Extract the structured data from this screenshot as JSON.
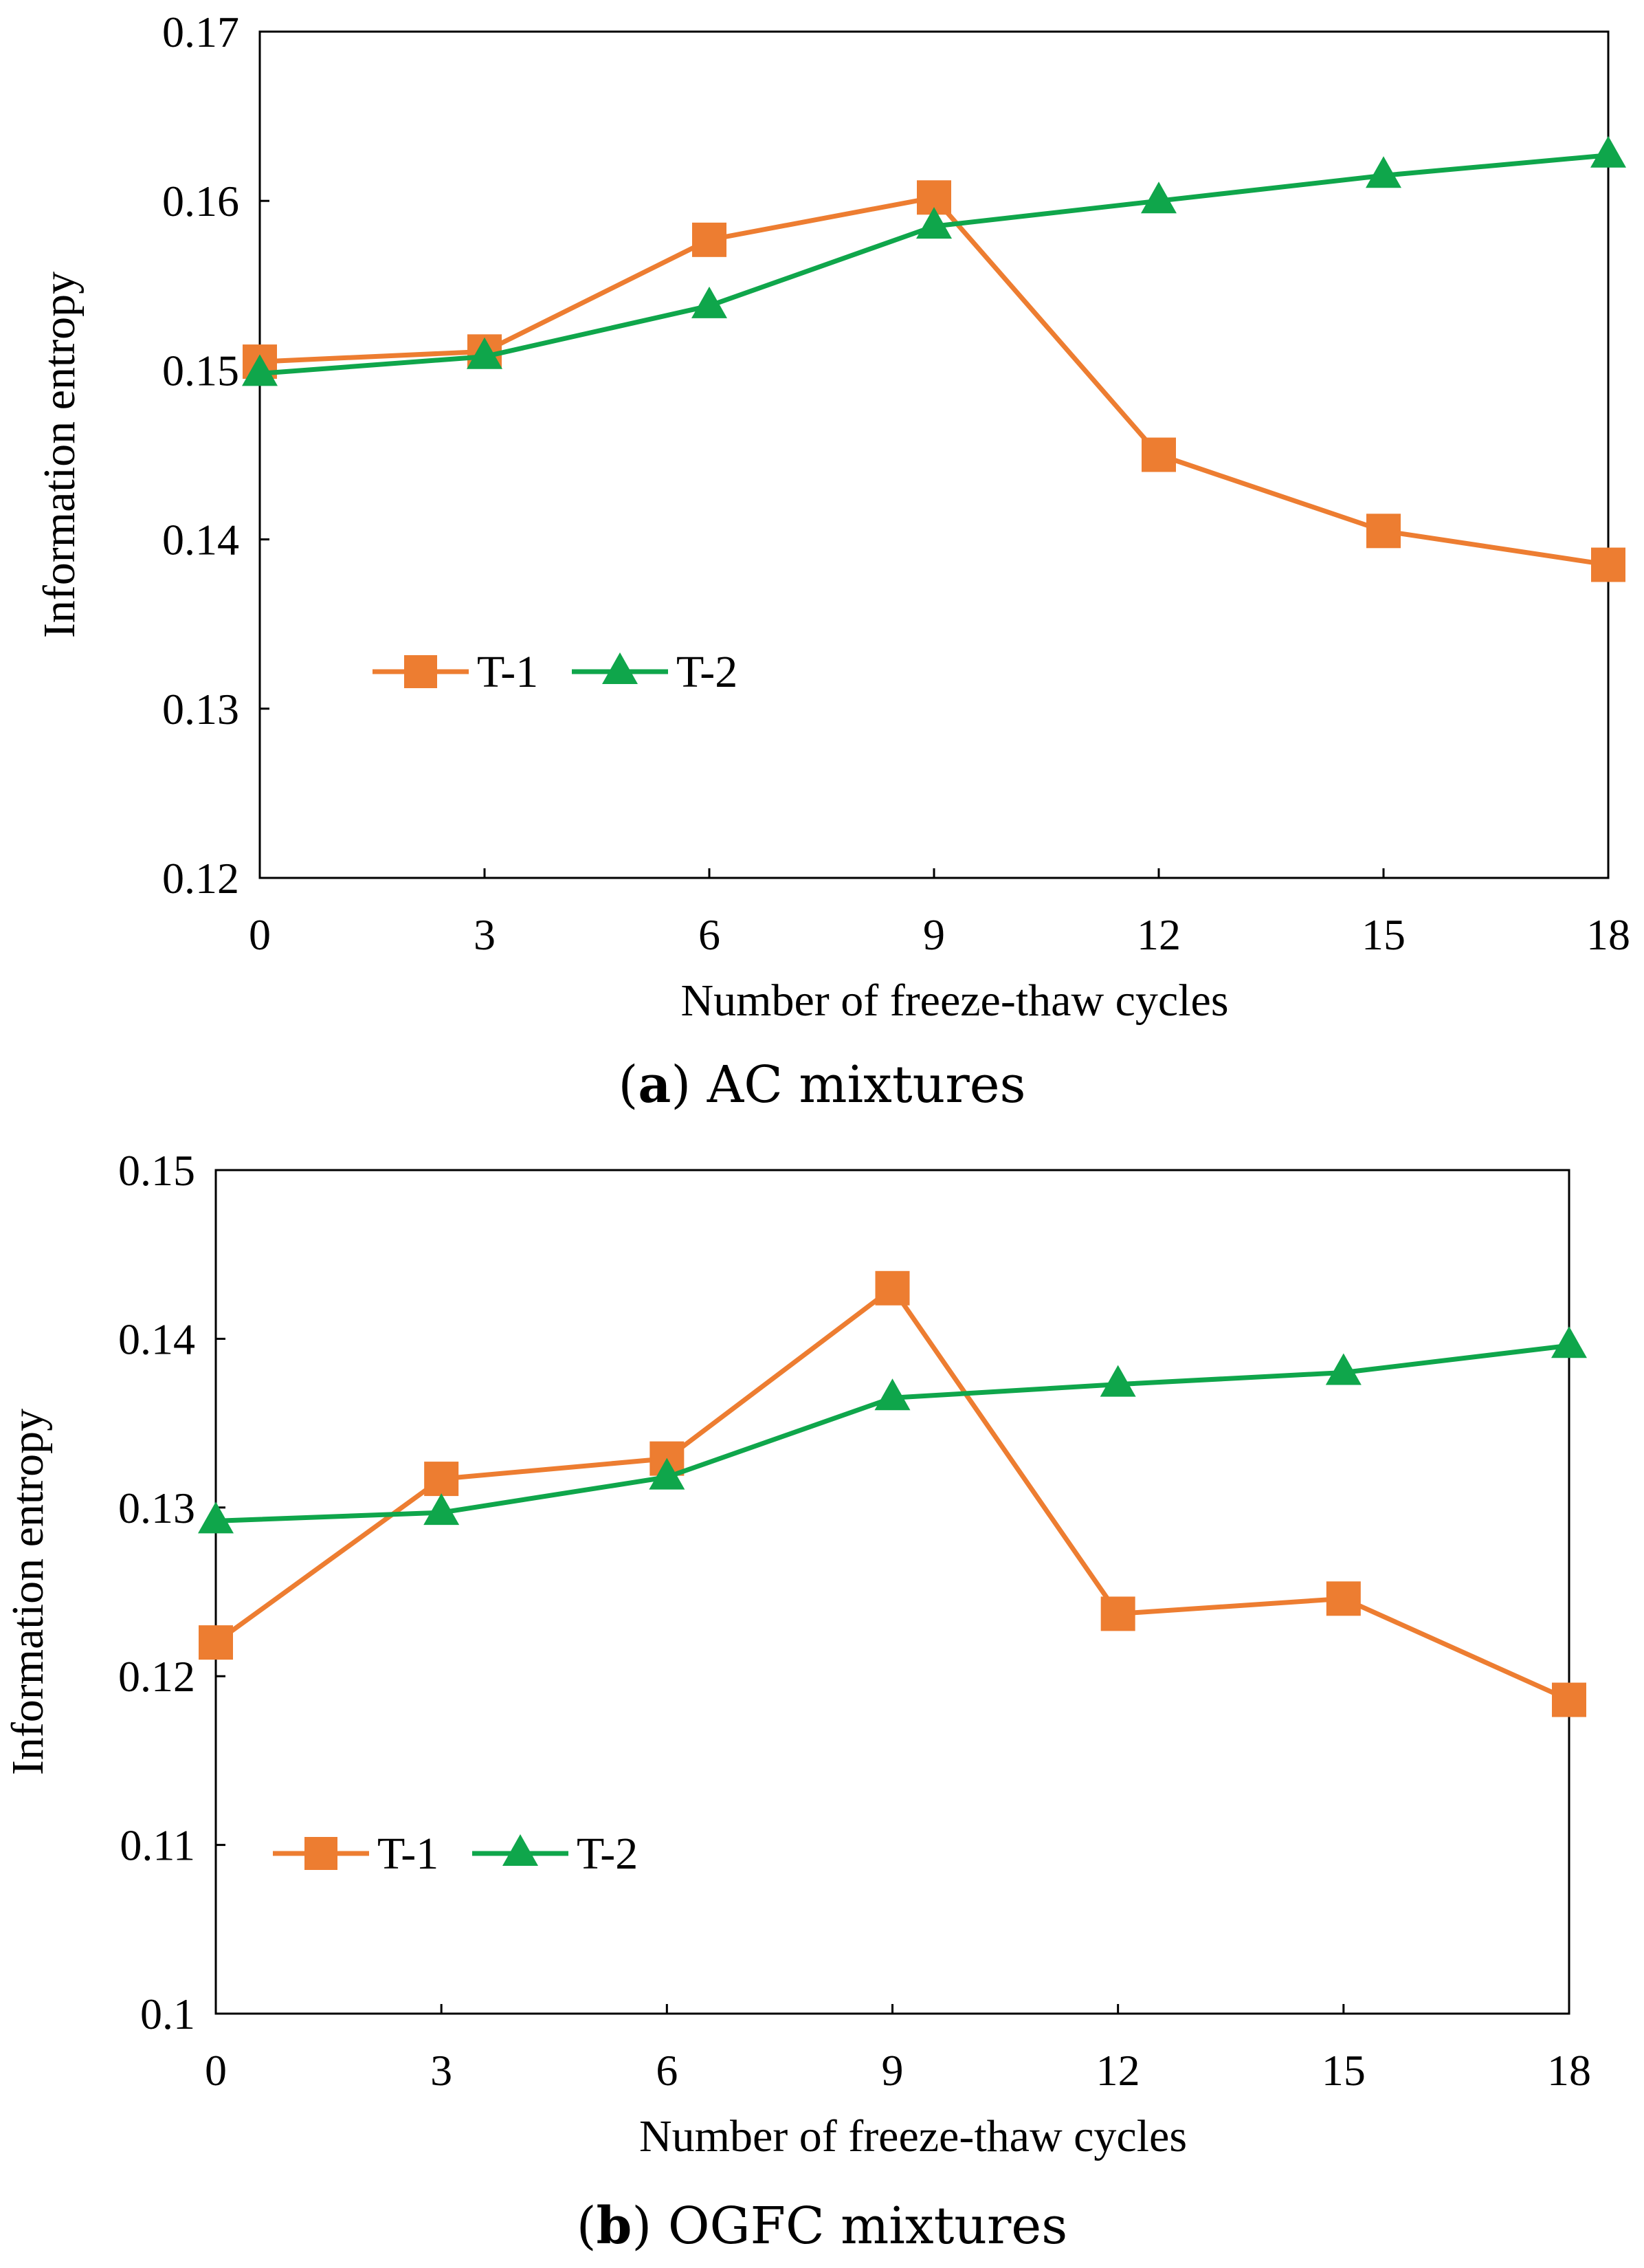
{
  "chart_data": [
    {
      "type": "line",
      "panel_label": "a",
      "title": "AC mixtures",
      "xlabel": "Number of freeze-thaw cycles",
      "ylabel": "Information entropy",
      "x": [
        0,
        3,
        6,
        9,
        12,
        15,
        18
      ],
      "xticks": [
        "0",
        "3",
        "6",
        "9",
        "12",
        "15",
        "18"
      ],
      "xlim": [
        0,
        18
      ],
      "ylim": [
        0.12,
        0.17
      ],
      "yticks": [
        "0.12",
        "0.13",
        "0.14",
        "0.15",
        "0.16",
        "0.17"
      ],
      "grid": false,
      "legend": "lower-left",
      "series": [
        {
          "name": "T-1",
          "color": "#ED7D31",
          "marker": "square",
          "values": [
            0.1505,
            0.1511,
            0.1577,
            0.1602,
            0.145,
            0.1405,
            0.1385
          ]
        },
        {
          "name": "T-2",
          "color": "#0FA64B",
          "marker": "triangle",
          "values": [
            0.1498,
            0.1508,
            0.1538,
            0.1585,
            0.16,
            0.1615,
            0.1627
          ]
        }
      ]
    },
    {
      "type": "line",
      "panel_label": "b",
      "title": "OGFC mixtures",
      "xlabel": "Number of freeze-thaw cycles",
      "ylabel": "Information entropy",
      "x": [
        0,
        3,
        6,
        9,
        12,
        15,
        18
      ],
      "xticks": [
        "0",
        "3",
        "6",
        "9",
        "12",
        "15",
        "18"
      ],
      "xlim": [
        0,
        18
      ],
      "ylim": [
        0.1,
        0.15
      ],
      "yticks": [
        "0.1",
        "0.11",
        "0.12",
        "0.13",
        "0.14",
        "0.15"
      ],
      "grid": false,
      "legend": "lower-left",
      "series": [
        {
          "name": "T-1",
          "color": "#ED7D31",
          "marker": "square",
          "values": [
            0.122,
            0.1317,
            0.1329,
            0.143,
            0.1237,
            0.1246,
            0.1186
          ]
        },
        {
          "name": "T-2",
          "color": "#0FA64B",
          "marker": "triangle",
          "values": [
            0.1292,
            0.1297,
            0.1318,
            0.1365,
            0.1373,
            0.138,
            0.1396
          ]
        }
      ]
    }
  ]
}
